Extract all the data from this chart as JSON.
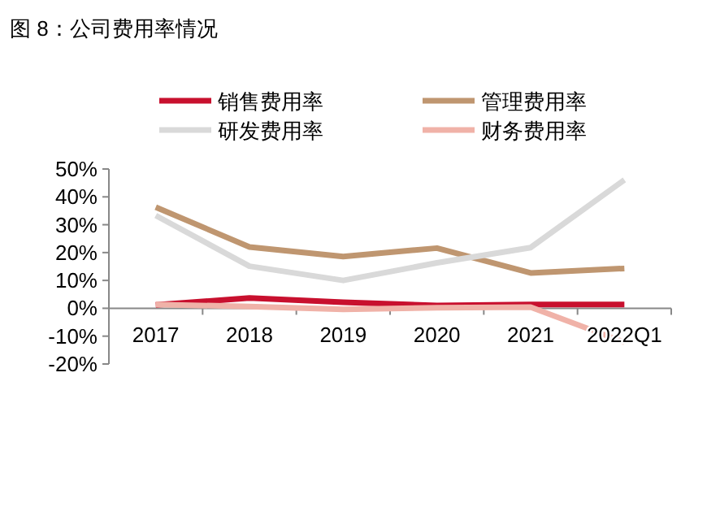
{
  "chart_data": {
    "type": "line",
    "title": "图 8：公司费用率情况",
    "categories": [
      "2017",
      "2018",
      "2019",
      "2020",
      "2021",
      "2022Q1"
    ],
    "series": [
      {
        "name": "销售费用率",
        "color": "#c8102e",
        "values": [
          1.2,
          3.7,
          2.2,
          1.0,
          1.4,
          1.4
        ]
      },
      {
        "name": "管理费用率",
        "color": "#bf9670",
        "values": [
          36.3,
          22.0,
          18.6,
          21.6,
          12.7,
          14.3
        ]
      },
      {
        "name": "研发费用率",
        "color": "#d9d9d9",
        "values": [
          33.3,
          15.1,
          10.0,
          16.3,
          21.8,
          46.1
        ]
      },
      {
        "name": "财务费用率",
        "color": "#f0b2a8",
        "values": [
          1.4,
          0.6,
          -0.4,
          0.2,
          0.4,
          -12.2
        ]
      }
    ],
    "ylim": [
      -20,
      50
    ],
    "yticks": [
      {
        "value": -20,
        "label": "-20%"
      },
      {
        "value": -10,
        "label": "-10%"
      },
      {
        "value": 0,
        "label": "0%"
      },
      {
        "value": 10,
        "label": "10%"
      },
      {
        "value": 20,
        "label": "20%"
      },
      {
        "value": 30,
        "label": "30%"
      },
      {
        "value": 40,
        "label": "40%"
      },
      {
        "value": 50,
        "label": "50%"
      }
    ],
    "grid": false,
    "legend": "top",
    "marker": "none",
    "line_style": "solid"
  }
}
